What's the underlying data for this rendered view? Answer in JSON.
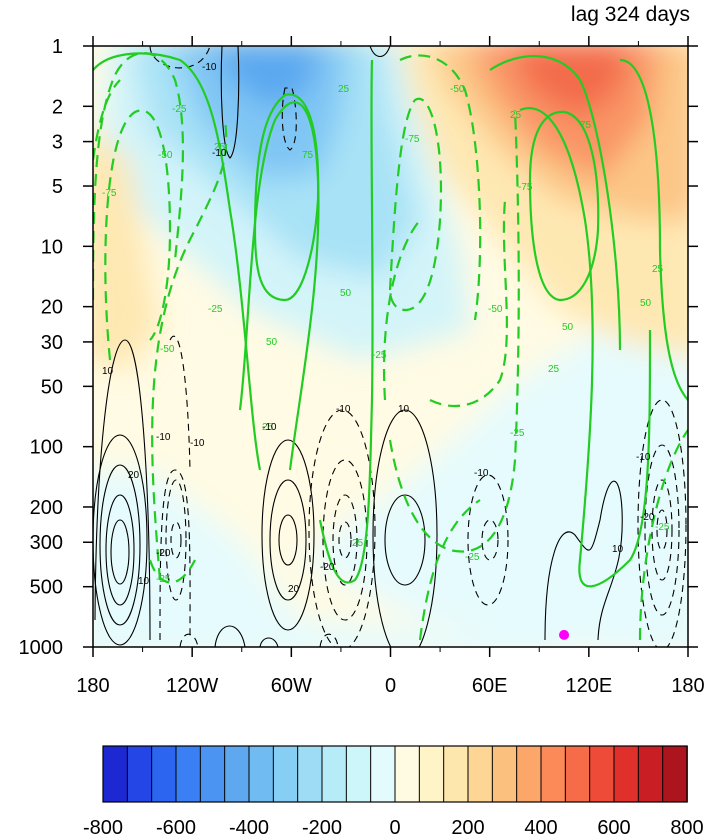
{
  "chart_data": {
    "type": "contour",
    "title": "lag 324 days",
    "x_axis": {
      "range": [
        -180,
        180
      ],
      "ticks": [
        -180,
        -120,
        -60,
        0,
        60,
        120,
        180
      ],
      "tick_labels": [
        "180",
        "120W",
        "60W",
        "0",
        "60E",
        "120E",
        "180"
      ]
    },
    "y_axis": {
      "scale": "log",
      "inverted": true,
      "range": [
        1,
        1000
      ],
      "ticks": [
        1,
        2,
        3,
        5,
        10,
        20,
        30,
        50,
        100,
        200,
        300,
        500,
        1000
      ],
      "tick_labels": [
        "1",
        "2",
        "3",
        "5",
        "10",
        "20",
        "30",
        "50",
        "100",
        "200",
        "300",
        "500",
        "1000"
      ]
    },
    "colorbar": {
      "levels": [
        -800,
        -750,
        -700,
        -650,
        -600,
        -550,
        -500,
        -450,
        -400,
        -350,
        -300,
        -250,
        -200,
        -150,
        -100,
        -50,
        0,
        50,
        100,
        150,
        200,
        250,
        300,
        350,
        400,
        450,
        500,
        550,
        600,
        650,
        700,
        750,
        800
      ],
      "tick_labels": [
        "-800",
        "-600",
        "-400",
        "-200",
        "0",
        "200",
        "400",
        "600",
        "800"
      ],
      "colors": [
        "#1e28d2",
        "#2446e6",
        "#2c66f0",
        "#3a80f4",
        "#4c94f2",
        "#5ea8f0",
        "#70bcf2",
        "#86cef4",
        "#9edcf6",
        "#b6ecf8",
        "#cdf6fb",
        "#e4fbfd",
        "#fffbe2",
        "#fff3c8",
        "#fee7ad",
        "#fdd696",
        "#fcc07e",
        "#fca66a",
        "#fb8a58",
        "#f66c48",
        "#ee4c38",
        "#e0302c",
        "#c81e24",
        "#ac141e"
      ]
    },
    "filled_contours": [
      {
        "region": "upper-left, 1-20 hPa, 150W-30W",
        "value": -350
      },
      {
        "region": "upper-left core, 1-5 hPa, 120W-60W",
        "value": -450
      },
      {
        "region": "upper-right, 1-30 hPa, 30E-180",
        "value": 250
      },
      {
        "region": "upper-right core, 1-3 hPa, 60E-120E",
        "value": 550
      },
      {
        "region": "lower-left, 100-1000 hPa, 180-150W",
        "value": -50
      },
      {
        "region": "lower-right, 20-1000 hPa, 0-180",
        "value": -50
      },
      {
        "region": "lower-middle, 50-1000 hPa, 150W-0",
        "value": 30
      }
    ],
    "green_contour_levels": [
      -75,
      -50,
      -25,
      25,
      50,
      75
    ],
    "black_contour_levels": [
      -20,
      -10,
      10,
      20
    ],
    "marker": {
      "x": 105,
      "y": 870,
      "color": "#ff00ff"
    }
  }
}
